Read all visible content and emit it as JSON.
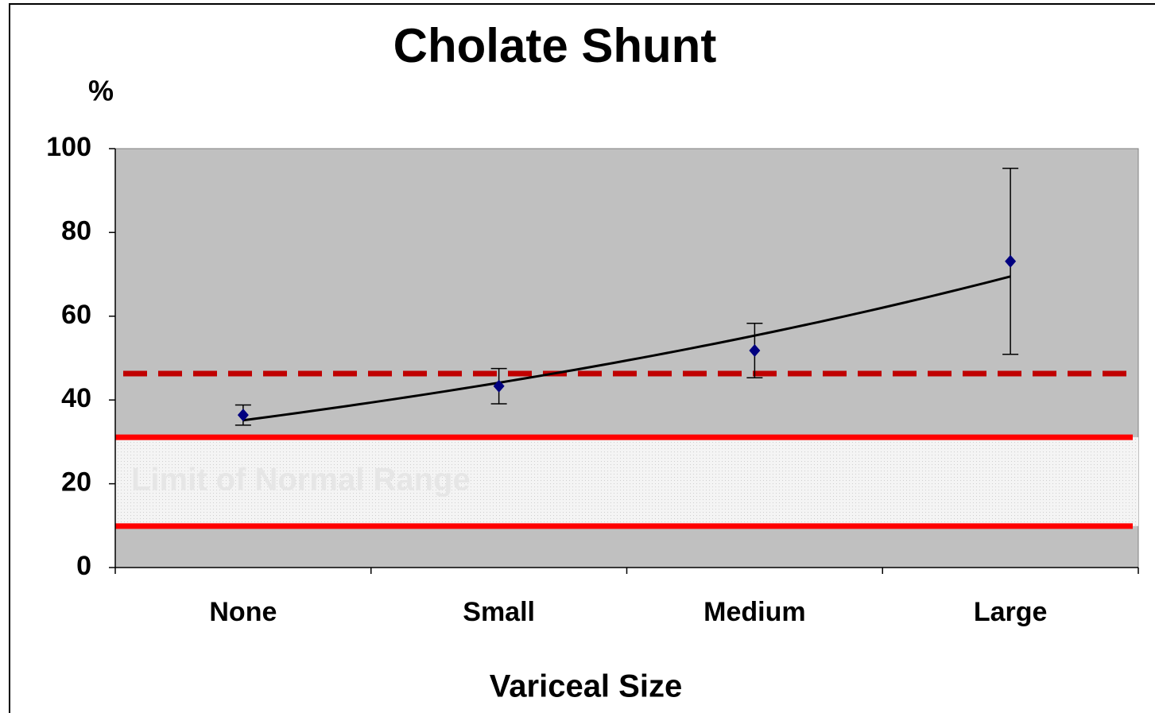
{
  "chart_data": {
    "type": "scatter",
    "title": "Cholate Shunt",
    "y_label": "%",
    "x_label": "Variceal Size",
    "categories": [
      "None",
      "Small",
      "Medium",
      "Large"
    ],
    "values": [
      36.4,
      43.3,
      51.8,
      73.1
    ],
    "errors": [
      2.4,
      4.2,
      6.5,
      22.2
    ],
    "color": "#000080",
    "trendline": "exponential",
    "trend_color": "#000000",
    "ylim": [
      0,
      100
    ],
    "yticks": [
      0,
      20,
      40,
      60,
      80,
      100
    ],
    "reference_line": {
      "value": 46.3,
      "color": "#c00000",
      "style": "dashed"
    },
    "normal_range": {
      "low": 9.9,
      "high": 31.1,
      "color": "#ff0000",
      "fill": "#e6e6e6",
      "label": "Limit of Normal Range"
    },
    "plot_background": "#c0c0c0"
  }
}
